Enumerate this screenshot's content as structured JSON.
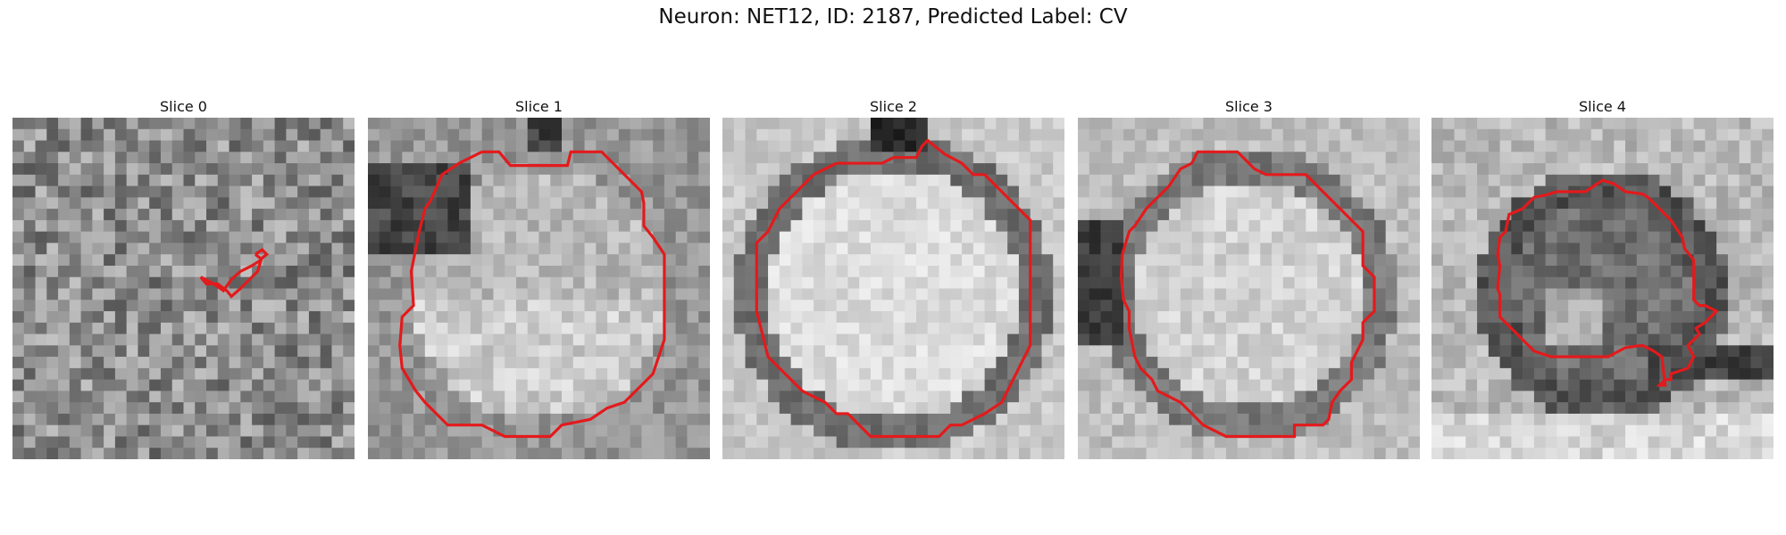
{
  "figure": {
    "title": "Neuron: NET12, ID: 2187, Predicted Label: CV"
  },
  "colors": {
    "contour": "#e31a1c",
    "background": "#ffffff"
  },
  "slices": [
    {
      "title": "Slice 0"
    },
    {
      "title": "Slice 1"
    },
    {
      "title": "Slice 2"
    },
    {
      "title": "Slice 3"
    },
    {
      "title": "Slice 4"
    }
  ]
}
